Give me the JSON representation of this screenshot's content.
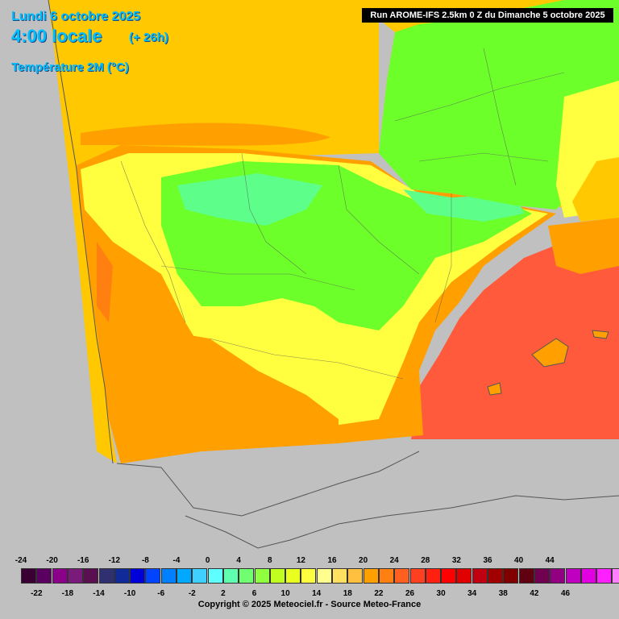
{
  "header": {
    "date": "Lundi 6 octobre 2025",
    "time": "4:00 locale",
    "lead": "(+ 26h)",
    "parameter": "Température 2M (°C)",
    "run": "Run AROME-IFS 2.5km 0 Z du Dimanche 5 octobre 2025"
  },
  "legend": {
    "top_labels": [
      "-24",
      "-20",
      "-16",
      "-12",
      "-8",
      "-4",
      "0",
      "4",
      "8",
      "12",
      "16",
      "20",
      "24",
      "28",
      "32",
      "36",
      "40",
      "44"
    ],
    "bottom_labels": [
      "-22",
      "-18",
      "-14",
      "-10",
      "-6",
      "-2",
      "2",
      "6",
      "10",
      "14",
      "18",
      "22",
      "26",
      "30",
      "34",
      "38",
      "42",
      "46"
    ],
    "colors": [
      "#3a0033",
      "#5a0060",
      "#8a0088",
      "#7a1a7a",
      "#5a1050",
      "#303070",
      "#102a9a",
      "#0000d8",
      "#0044ff",
      "#0080ff",
      "#00a8ff",
      "#40d0ff",
      "#60ffff",
      "#60ffb0",
      "#70ff70",
      "#90ff40",
      "#c0ff20",
      "#e8ff20",
      "#ffff40",
      "#ffff90",
      "#ffe060",
      "#ffc040",
      "#ffa000",
      "#ff8010",
      "#ff6020",
      "#ff4020",
      "#ff2010",
      "#ff0000",
      "#e00000",
      "#c00010",
      "#a00000",
      "#800000",
      "#600010",
      "#700050",
      "#900080",
      "#c000c0",
      "#e000e0",
      "#ff20ff",
      "#ff80ff"
    ],
    "copyright": "Copyright © 2025 Meteociel.fr - Source Meteo-France"
  },
  "map": {
    "sea_atlantic_color": "#ffc800",
    "sea_med_color": "#ff5a3c",
    "land_cool_color": "#6dff2a",
    "land_cold_color": "#5dff8a",
    "land_mild_color": "#ffff40",
    "land_warm_color": "#ffa000",
    "outside_color": "#c0c0c0",
    "border_color": "#555555"
  }
}
